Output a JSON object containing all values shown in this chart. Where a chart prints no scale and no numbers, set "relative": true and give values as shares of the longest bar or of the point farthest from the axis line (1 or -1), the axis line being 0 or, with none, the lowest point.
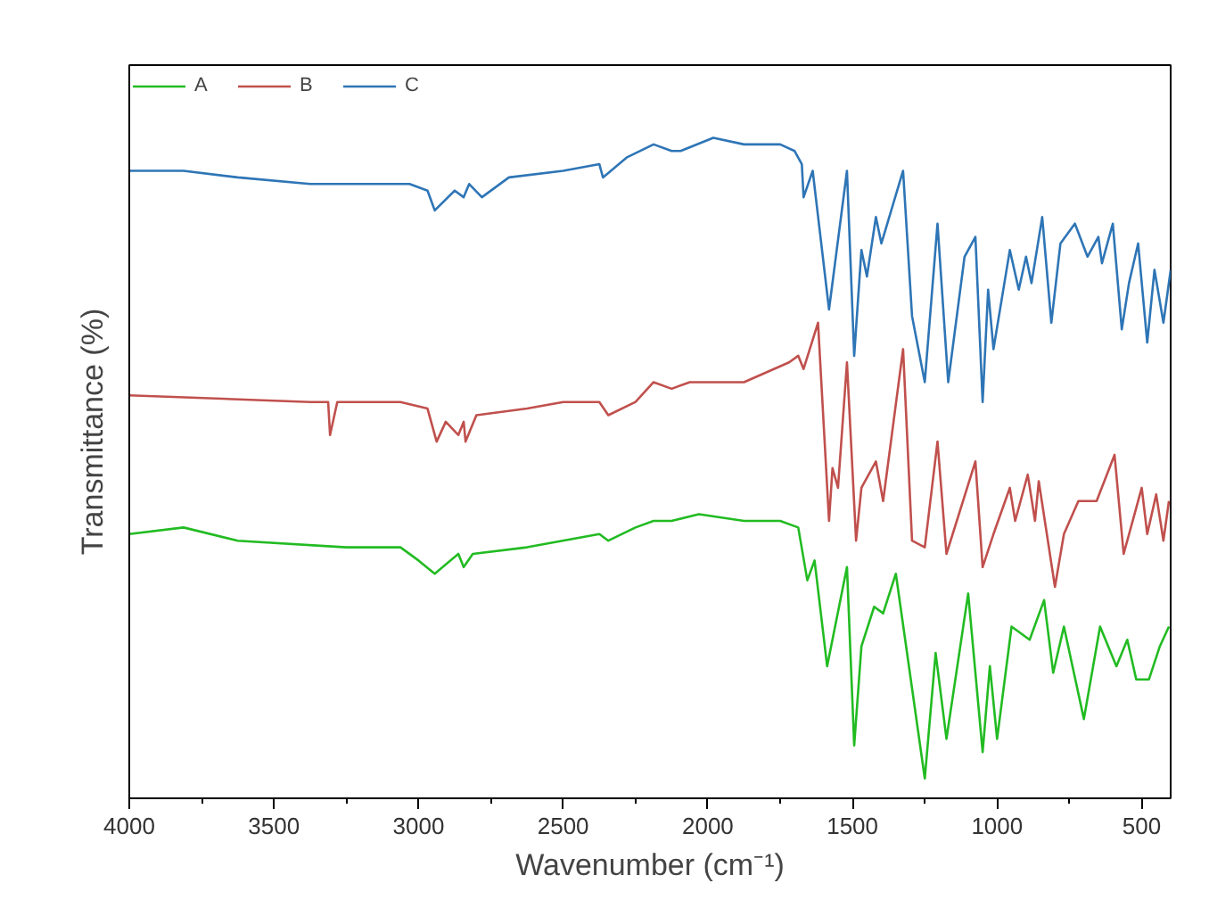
{
  "chart_data": {
    "type": "line",
    "relative": true,
    "xlabel": "Wavenumber (cm⁻¹)",
    "ylabel": "Transmittance (%)",
    "xlim": [
      4000,
      400
    ],
    "xticks": [
      4000,
      {
        "value": 3750,
        "label": null
      },
      3500,
      {
        "value": 3250,
        "label": null
      },
      3000,
      {
        "value": 2750,
        "label": null
      },
      2500,
      {
        "value": 2250,
        "label": null
      },
      2000,
      {
        "value": 1750,
        "label": null
      },
      1500,
      {
        "value": 1250,
        "label": null
      },
      1000,
      {
        "value": 750,
        "label": null
      },
      500
    ],
    "tick_labels": "x",
    "grid": false,
    "legend": "top left",
    "series": [
      {
        "name": "A",
        "color": "#22bb22",
        "x": [
          4000,
          3812.5,
          3625,
          3250,
          3062.5,
          3000,
          2944,
          2862.5,
          2844,
          2812.5,
          2625,
          2375,
          2344,
          2250,
          2187.5,
          2125,
          2031,
          1875,
          1750,
          1687.5,
          1656,
          1631,
          1587.5,
          1519,
          1494,
          1469,
          1425,
          1394,
          1350,
          1250,
          1212.5,
          1175,
          1100,
          1050,
          1025,
          1000,
          950,
          887.5,
          837.5,
          806,
          769,
          700,
          644,
          587.5,
          550,
          519,
          475,
          437.5,
          406
        ],
        "values": [
          0.4,
          0.41,
          0.39,
          0.38,
          0.38,
          0.36,
          0.34,
          0.37,
          0.35,
          0.37,
          0.38,
          0.4,
          0.39,
          0.41,
          0.42,
          0.42,
          0.43,
          0.42,
          0.42,
          0.41,
          0.33,
          0.36,
          0.2,
          0.35,
          0.08,
          0.23,
          0.29,
          0.28,
          0.34,
          0.03,
          0.22,
          0.09,
          0.31,
          0.07,
          0.2,
          0.09,
          0.26,
          0.24,
          0.3,
          0.19,
          0.26,
          0.12,
          0.26,
          0.2,
          0.24,
          0.18,
          0.18,
          0.23,
          0.26
        ]
      },
      {
        "name": "B",
        "color": "#c0504d",
        "x": [
          4000,
          3375,
          3312.5,
          3306,
          3281,
          3062.5,
          2969,
          2937.5,
          2906,
          2862.5,
          2844,
          2837.5,
          2800,
          2625,
          2500,
          2375,
          2344,
          2250,
          2187.5,
          2125,
          2062.5,
          1875,
          1719,
          1687.5,
          1669,
          1619,
          1581,
          1569,
          1550,
          1519,
          1487.5,
          1469,
          1419,
          1394,
          1325,
          1294,
          1250,
          1206,
          1175,
          1075,
          1050,
          1012.5,
          956,
          937.5,
          894,
          869,
          856,
          800,
          769,
          719,
          656,
          594,
          562.5,
          500,
          481,
          450,
          425,
          406
        ],
        "values": [
          0.61,
          0.6,
          0.6,
          0.55,
          0.6,
          0.6,
          0.59,
          0.54,
          0.57,
          0.55,
          0.57,
          0.54,
          0.58,
          0.59,
          0.6,
          0.6,
          0.58,
          0.6,
          0.63,
          0.62,
          0.63,
          0.63,
          0.66,
          0.67,
          0.65,
          0.72,
          0.42,
          0.5,
          0.47,
          0.66,
          0.39,
          0.47,
          0.51,
          0.45,
          0.68,
          0.39,
          0.38,
          0.54,
          0.37,
          0.51,
          0.35,
          0.4,
          0.47,
          0.42,
          0.49,
          0.42,
          0.48,
          0.32,
          0.4,
          0.45,
          0.45,
          0.52,
          0.37,
          0.47,
          0.4,
          0.46,
          0.39,
          0.45
        ]
      },
      {
        "name": "C",
        "color": "#2e75b6",
        "x": [
          4000,
          3812.5,
          3625,
          3375,
          3062.5,
          3031,
          2969,
          2944,
          2875,
          2844,
          2825,
          2781,
          2687.5,
          2500,
          2375,
          2362.5,
          2281,
          2187.5,
          2125,
          2094,
          1981,
          1875,
          1750,
          1700,
          1675,
          1669,
          1637.5,
          1581,
          1519,
          1494,
          1469,
          1450,
          1419,
          1400,
          1325,
          1294,
          1250,
          1206,
          1169,
          1112.5,
          1075,
          1050,
          1031,
          1012.5,
          956,
          925,
          900,
          881,
          844,
          812.5,
          781,
          731,
          687.5,
          650,
          637.5,
          600,
          569,
          544,
          512.5,
          481,
          456,
          425,
          400
        ],
        "values": [
          0.95,
          0.95,
          0.94,
          0.93,
          0.93,
          0.93,
          0.92,
          0.89,
          0.92,
          0.91,
          0.93,
          0.91,
          0.94,
          0.95,
          0.96,
          0.94,
          0.97,
          0.99,
          0.98,
          0.98,
          1.0,
          0.99,
          0.99,
          0.98,
          0.96,
          0.91,
          0.95,
          0.74,
          0.95,
          0.67,
          0.83,
          0.79,
          0.88,
          0.84,
          0.95,
          0.73,
          0.63,
          0.87,
          0.63,
          0.82,
          0.85,
          0.6,
          0.77,
          0.68,
          0.83,
          0.77,
          0.82,
          0.78,
          0.88,
          0.72,
          0.84,
          0.87,
          0.82,
          0.85,
          0.81,
          0.87,
          0.71,
          0.78,
          0.84,
          0.69,
          0.8,
          0.72,
          0.8
        ]
      }
    ]
  }
}
